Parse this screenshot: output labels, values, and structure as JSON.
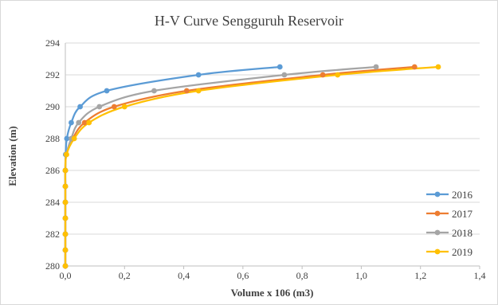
{
  "chart_data": {
    "type": "line",
    "title": "H-V Curve Sengguruh Reservoir",
    "xlabel": "Volume  x 106 (m3)",
    "ylabel": "Elevation  (m)",
    "xlim": [
      0,
      1.4
    ],
    "ylim": [
      280,
      294
    ],
    "x_ticks": [
      "0,0",
      "0,2",
      "0,4",
      "0,6",
      "0,8",
      "1,0",
      "1,2",
      "1,4"
    ],
    "y_ticks": [
      "280",
      "282",
      "284",
      "286",
      "288",
      "290",
      "292",
      "294"
    ],
    "grid": "horizontal",
    "legend_position": "right",
    "series": [
      {
        "name": "2016",
        "color": "#5b9bd5",
        "points": [
          [
            0,
            280
          ],
          [
            0,
            281
          ],
          [
            0,
            282
          ],
          [
            0,
            283
          ],
          [
            0,
            284
          ],
          [
            0,
            285
          ],
          [
            0,
            286
          ],
          [
            0.001,
            287
          ],
          [
            0.005,
            288
          ],
          [
            0.02,
            289
          ],
          [
            0.05,
            290
          ],
          [
            0.14,
            291
          ],
          [
            0.45,
            292
          ],
          [
            0.725,
            292.5
          ]
        ]
      },
      {
        "name": "2017",
        "color": "#ed7d31",
        "points": [
          [
            0,
            280
          ],
          [
            0,
            281
          ],
          [
            0,
            282
          ],
          [
            0,
            283
          ],
          [
            0,
            284
          ],
          [
            0,
            285
          ],
          [
            0,
            286
          ],
          [
            0.003,
            287
          ],
          [
            0.025,
            288
          ],
          [
            0.065,
            289
          ],
          [
            0.165,
            290
          ],
          [
            0.41,
            291
          ],
          [
            0.87,
            292
          ],
          [
            1.18,
            292.5
          ]
        ]
      },
      {
        "name": "2018",
        "color": "#a5a5a5",
        "points": [
          [
            0,
            280
          ],
          [
            0,
            281
          ],
          [
            0,
            282
          ],
          [
            0,
            283
          ],
          [
            0,
            284
          ],
          [
            0,
            285
          ],
          [
            0,
            286
          ],
          [
            0.003,
            287
          ],
          [
            0.02,
            288
          ],
          [
            0.045,
            289
          ],
          [
            0.115,
            290
          ],
          [
            0.3,
            291
          ],
          [
            0.74,
            292
          ],
          [
            1.05,
            292.5
          ]
        ]
      },
      {
        "name": "2019",
        "color": "#ffc000",
        "points": [
          [
            0,
            280
          ],
          [
            0,
            281
          ],
          [
            0,
            282
          ],
          [
            0,
            283
          ],
          [
            0,
            284
          ],
          [
            0,
            285
          ],
          [
            0,
            286
          ],
          [
            0.004,
            287
          ],
          [
            0.03,
            288
          ],
          [
            0.08,
            289
          ],
          [
            0.2,
            290
          ],
          [
            0.45,
            291
          ],
          [
            0.92,
            292
          ],
          [
            1.26,
            292.5
          ]
        ]
      }
    ]
  }
}
